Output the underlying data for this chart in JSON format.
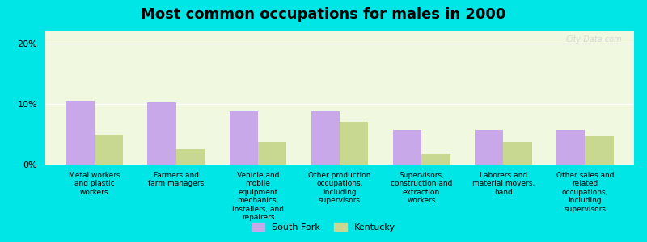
{
  "title": "Most common occupations for males in 2000",
  "categories": [
    "Metal workers\nand plastic\nworkers",
    "Farmers and\nfarm managers",
    "Vehicle and\nmobile\nequipment\nmechanics,\ninstallers, and\nrepairers",
    "Other production\noccupations,\nincluding\nsupervisors",
    "Supervisors,\nconstruction and\nextraction\nworkers",
    "Laborers and\nmaterial movers,\nhand",
    "Other sales and\nrelated\noccupations,\nincluding\nsupervisors"
  ],
  "south_fork": [
    10.5,
    10.2,
    8.8,
    8.8,
    5.8,
    5.8,
    5.7
  ],
  "kentucky": [
    5.0,
    2.5,
    3.8,
    7.0,
    1.8,
    3.8,
    4.8
  ],
  "south_fork_color": "#c8a8e8",
  "kentucky_color": "#c8d890",
  "background_outer": "#00e5e5",
  "background_inner_top": "#f0f8e0",
  "background_inner_bottom": "#e8f8f0",
  "ylim": [
    0,
    22
  ],
  "yticks": [
    0,
    10,
    20
  ],
  "ytick_labels": [
    "0%",
    "10%",
    "20%"
  ],
  "bar_width": 0.35,
  "legend_south_fork": "South Fork",
  "legend_kentucky": "Kentucky",
  "watermark": "City-Data.com"
}
